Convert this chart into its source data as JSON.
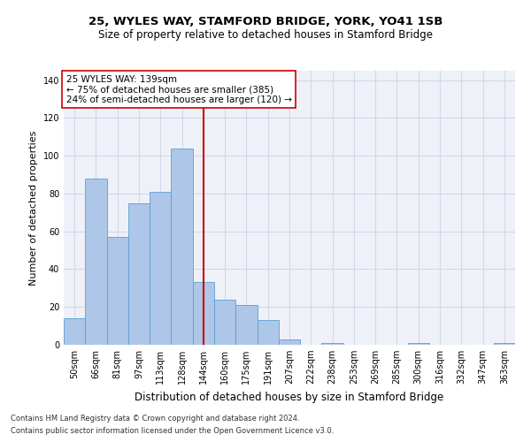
{
  "title1": "25, WYLES WAY, STAMFORD BRIDGE, YORK, YO41 1SB",
  "title2": "Size of property relative to detached houses in Stamford Bridge",
  "xlabel": "Distribution of detached houses by size in Stamford Bridge",
  "ylabel": "Number of detached properties",
  "footer1": "Contains HM Land Registry data © Crown copyright and database right 2024.",
  "footer2": "Contains public sector information licensed under the Open Government Licence v3.0.",
  "annotation_line1": "25 WYLES WAY: 139sqm",
  "annotation_line2": "← 75% of detached houses are smaller (385)",
  "annotation_line3": "24% of semi-detached houses are larger (120) →",
  "bar_categories": [
    "50sqm",
    "66sqm",
    "81sqm",
    "97sqm",
    "113sqm",
    "128sqm",
    "144sqm",
    "160sqm",
    "175sqm",
    "191sqm",
    "207sqm",
    "222sqm",
    "238sqm",
    "253sqm",
    "269sqm",
    "285sqm",
    "300sqm",
    "316sqm",
    "332sqm",
    "347sqm",
    "363sqm"
  ],
  "bar_values": [
    14,
    88,
    57,
    75,
    81,
    104,
    33,
    24,
    21,
    13,
    3,
    0,
    1,
    0,
    0,
    0,
    1,
    0,
    0,
    0,
    1
  ],
  "bar_color": "#aec6e8",
  "bar_edge_color": "#5a9fd4",
  "vline_color": "#cc0000",
  "vline_idx": 6,
  "annotation_box_edge": "#cc0000",
  "annotation_box_fill": "white",
  "ylim": [
    0,
    145
  ],
  "yticks": [
    0,
    20,
    40,
    60,
    80,
    100,
    120,
    140
  ],
  "grid_color": "#d0d8e8",
  "background_color": "#eef2f8",
  "title1_fontsize": 9.5,
  "title2_fontsize": 8.5,
  "xlabel_fontsize": 8.5,
  "ylabel_fontsize": 8,
  "tick_fontsize": 7,
  "footer_fontsize": 6,
  "annotation_fontsize": 7.5
}
